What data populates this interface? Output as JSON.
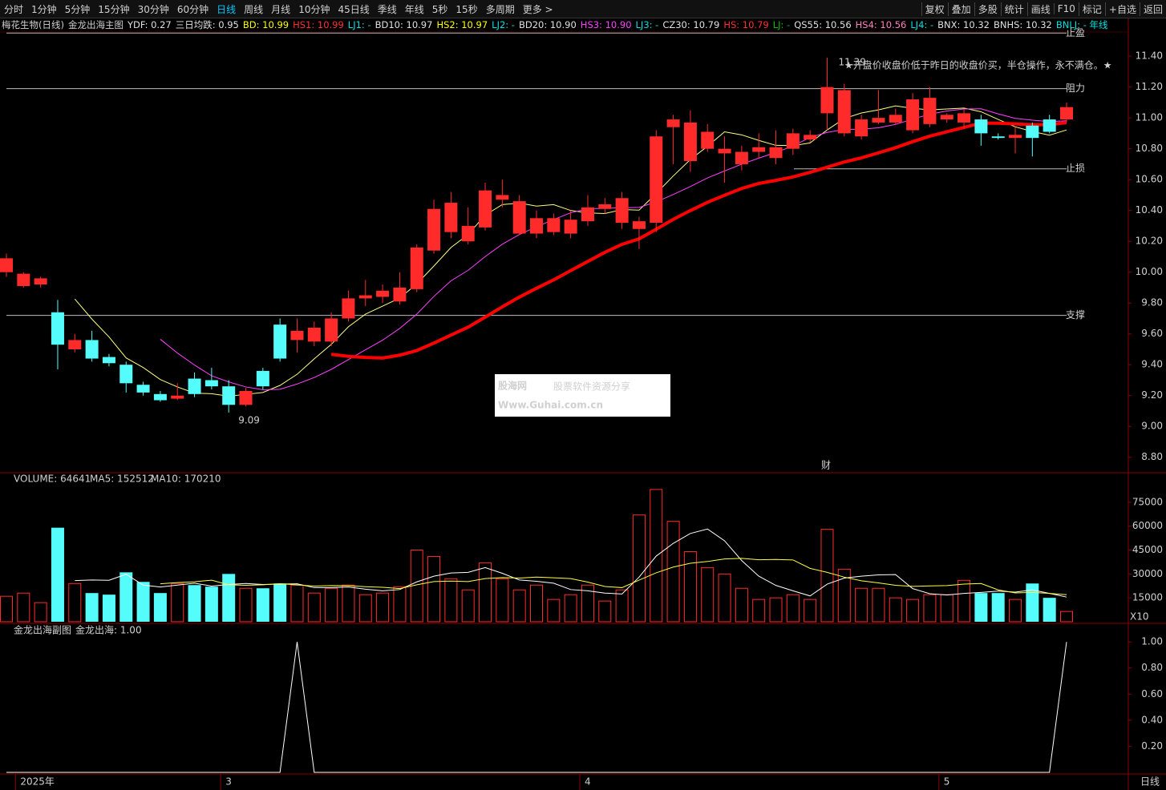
{
  "toolbar": {
    "left": [
      "分时",
      "1分钟",
      "5分钟",
      "15分钟",
      "30分钟",
      "60分钟",
      "日线",
      "周线",
      "月线",
      "10分钟",
      "45日线",
      "季线",
      "年线",
      "5秒",
      "15秒",
      "多周期",
      "更多 >"
    ],
    "active": "日线",
    "right": [
      "复权",
      "叠加",
      "多股",
      "统计",
      "画线",
      "F10",
      "标记",
      "+自选",
      "返回"
    ]
  },
  "header": {
    "stock": "梅花生物(日线)",
    "indicator": "金龙出海主图",
    "items": [
      {
        "text": "YDF: 0.27",
        "color": "#e0e0e0"
      },
      {
        "text": "三日均跌: 0.95",
        "color": "#e0e0e0"
      },
      {
        "text": "BD: 10.99",
        "color": "#ffff00"
      },
      {
        "text": "HS1: 10.99",
        "color": "#ff3030"
      },
      {
        "text": "LJ1: -",
        "color": "#00e0e0"
      },
      {
        "text": "BD10: 10.97",
        "color": "#e0e0e0"
      },
      {
        "text": "HS2: 10.97",
        "color": "#ffff00"
      },
      {
        "text": "LJ2: -",
        "color": "#00e0e0"
      },
      {
        "text": "BD20: 10.90",
        "color": "#e0e0e0"
      },
      {
        "text": "HS3: 10.90",
        "color": "#ff40ff"
      },
      {
        "text": "LJ3: -",
        "color": "#00e0e0"
      },
      {
        "text": "CZ30: 10.79",
        "color": "#e0e0e0"
      },
      {
        "text": "HS: 10.79",
        "color": "#ff3030"
      },
      {
        "text": "LJ: -",
        "color": "#00c000"
      },
      {
        "text": "QS55: 10.56",
        "color": "#e0e0e0"
      },
      {
        "text": "HS4: 10.56",
        "color": "#ff80c0"
      },
      {
        "text": "LJ4: -",
        "color": "#00e0e0"
      },
      {
        "text": "BNX: 10.32",
        "color": "#e0e0e0"
      },
      {
        "text": "BNHS: 10.32",
        "color": "#e0e0e0"
      },
      {
        "text": "BNLJ: - 年线",
        "color": "#00e0e0"
      }
    ]
  },
  "chart_data": [
    {
      "type": "candlestick",
      "up_color": "#ff2a2a",
      "down_color": "#54fcfc",
      "categories": [
        null,
        "2025年",
        null,
        null,
        null,
        null,
        null,
        null,
        null,
        null,
        null,
        null,
        null,
        "3",
        null,
        null,
        null,
        null,
        null,
        null,
        null,
        null,
        null,
        null,
        null,
        null,
        null,
        null,
        null,
        null,
        null,
        null,
        null,
        null,
        "4",
        null,
        null,
        null,
        null,
        null,
        null,
        null,
        null,
        null,
        null,
        null,
        null,
        null,
        null,
        null,
        null,
        null,
        null,
        null,
        null,
        "5",
        null,
        null,
        null,
        null,
        null,
        null,
        null
      ],
      "open": [
        10.0,
        9.91,
        9.92,
        9.74,
        9.5,
        9.56,
        9.45,
        9.4,
        9.27,
        9.21,
        9.18,
        9.31,
        9.3,
        9.26,
        9.14,
        9.36,
        9.66,
        9.56,
        9.55,
        9.55,
        9.7,
        9.83,
        9.84,
        9.81,
        9.89,
        10.14,
        10.26,
        10.2,
        10.29,
        10.47,
        10.25,
        10.25,
        10.26,
        10.25,
        10.33,
        10.41,
        10.32,
        10.28,
        10.32,
        10.94,
        10.72,
        10.8,
        10.77,
        10.7,
        10.78,
        10.74,
        10.8,
        10.86,
        11.03,
        10.9,
        10.88,
        10.97,
        10.97,
        10.92,
        10.96,
        10.99,
        10.97,
        10.99,
        10.88,
        10.87,
        10.95,
        10.99,
        10.99
      ],
      "high": [
        10.12,
        10.0,
        9.97,
        9.82,
        9.6,
        9.62,
        9.47,
        9.42,
        9.29,
        9.23,
        9.28,
        9.35,
        9.38,
        9.3,
        9.25,
        9.38,
        9.7,
        9.7,
        9.68,
        9.74,
        9.88,
        9.95,
        9.92,
        10.0,
        10.18,
        10.47,
        10.52,
        10.42,
        10.58,
        10.6,
        10.5,
        10.4,
        10.38,
        10.4,
        10.5,
        10.48,
        10.52,
        10.36,
        10.92,
        11.02,
        11.05,
        10.96,
        10.88,
        10.82,
        10.9,
        10.92,
        10.93,
        10.92,
        11.39,
        11.22,
        11.02,
        11.18,
        11.06,
        11.16,
        11.2,
        11.03,
        11.06,
        11.02,
        10.9,
        10.94,
        10.97,
        11.02,
        11.1
      ],
      "low": [
        9.97,
        9.9,
        9.9,
        9.37,
        9.48,
        9.42,
        9.39,
        9.22,
        9.2,
        9.16,
        9.17,
        9.19,
        9.24,
        9.09,
        9.13,
        9.24,
        9.42,
        9.48,
        9.52,
        9.52,
        9.68,
        9.78,
        9.8,
        9.79,
        9.87,
        10.12,
        10.22,
        10.18,
        10.27,
        10.42,
        10.24,
        10.22,
        10.24,
        10.22,
        10.3,
        10.38,
        10.28,
        10.15,
        10.26,
        10.7,
        10.65,
        10.78,
        10.58,
        10.66,
        10.74,
        10.7,
        10.76,
        10.84,
        10.92,
        10.88,
        10.86,
        10.96,
        10.96,
        10.9,
        10.94,
        10.97,
        10.93,
        10.82,
        10.86,
        10.77,
        10.75,
        10.9,
        10.97
      ],
      "close": [
        10.09,
        9.99,
        9.96,
        9.53,
        9.56,
        9.44,
        9.41,
        9.28,
        9.22,
        9.17,
        9.2,
        9.21,
        9.26,
        9.14,
        9.23,
        9.26,
        9.44,
        9.62,
        9.64,
        9.7,
        9.83,
        9.85,
        9.88,
        9.9,
        10.16,
        10.41,
        10.45,
        10.3,
        10.53,
        10.5,
        10.46,
        10.35,
        10.35,
        10.34,
        10.42,
        10.44,
        10.48,
        10.33,
        10.88,
        10.99,
        10.97,
        10.91,
        10.8,
        10.78,
        10.81,
        10.81,
        10.9,
        10.89,
        11.2,
        11.18,
        10.99,
        11.0,
        11.02,
        11.12,
        11.13,
        11.02,
        11.03,
        10.9,
        10.87,
        10.89,
        10.87,
        10.91,
        11.07
      ],
      "ylim": [
        8.7,
        11.65
      ],
      "yticks": [
        {
          "value": 8.8,
          "label": "8.80"
        },
        {
          "value": 9.0,
          "label": "9.00"
        },
        {
          "value": 9.2,
          "label": "9.20"
        },
        {
          "value": 9.4,
          "label": "9.40"
        },
        {
          "value": 9.6,
          "label": "9.60"
        },
        {
          "value": 9.8,
          "label": "9.80"
        },
        {
          "value": 10.0,
          "label": "10.00"
        },
        {
          "value": 10.2,
          "label": "10.20"
        },
        {
          "value": 10.4,
          "label": "10.40"
        },
        {
          "value": 10.6,
          "label": "10.60"
        },
        {
          "value": 10.8,
          "label": "10.80"
        },
        {
          "value": 11.0,
          "label": "11.00"
        },
        {
          "value": 11.2,
          "label": "11.20"
        },
        {
          "value": 11.4,
          "label": "11.40"
        }
      ],
      "levels": [
        {
          "label": "止盈",
          "value": 11.55
        },
        {
          "label": "阻力",
          "value": 11.19
        },
        {
          "label": "止损",
          "value": 10.67
        },
        {
          "label": "支撑",
          "value": 9.72
        }
      ],
      "high_label": 11.39,
      "low_label": 9.09,
      "annotation": "★开盘价收盘价低于昨日的收盘价买，半仓操作，永不满仓。★",
      "event_marker": "财",
      "watermark": {
        "brand": "股海网",
        "slogan": "股票软件资源分享",
        "url": "Www.Guhai.com.cn"
      }
    },
    {
      "type": "volume",
      "title": "VOLUME: 64641",
      "ma5_label": "MA5: 152512",
      "ma10_label": "MA10: 170210",
      "unit_label": "X10",
      "values": [
        16000,
        18000,
        12000,
        59000,
        24000,
        18000,
        17000,
        31000,
        25000,
        18000,
        24000,
        23000,
        22000,
        30000,
        21000,
        21000,
        24000,
        23000,
        18000,
        21000,
        23000,
        17000,
        18000,
        22000,
        45000,
        41000,
        27000,
        20000,
        37000,
        27000,
        20000,
        23000,
        14000,
        17000,
        23000,
        13000,
        20000,
        67000,
        83000,
        63000,
        44000,
        34000,
        30000,
        21000,
        14000,
        15000,
        17000,
        14000,
        58000,
        33000,
        21000,
        21000,
        15000,
        14000,
        17000,
        17000,
        26000,
        18000,
        18000,
        14000,
        24000,
        15000,
        6464
      ],
      "ylim": [
        0,
        92500
      ],
      "yticks": [
        15000,
        30000,
        45000,
        60000,
        75000
      ]
    },
    {
      "type": "line",
      "title": "金龙出海副图",
      "value_label": "金龙出海: 1.00",
      "color": "#ffffff",
      "values": [
        0,
        0,
        0,
        0,
        0,
        0,
        0,
        0,
        0,
        0,
        0,
        0,
        0,
        0,
        0,
        0,
        0,
        1,
        0,
        0,
        0,
        0,
        0,
        0,
        0,
        0,
        0,
        0,
        0,
        0,
        0,
        0,
        0,
        0,
        0,
        0,
        0,
        0,
        0,
        0,
        0,
        0,
        0,
        0,
        0,
        0,
        0,
        0,
        0,
        0,
        0,
        0,
        0,
        0,
        0,
        0,
        0,
        0,
        0,
        0,
        0,
        0,
        1
      ],
      "ylim": [
        0,
        1.13
      ],
      "yticks": [
        {
          "value": 0.2,
          "label": "0.20"
        },
        {
          "value": 0.4,
          "label": "0.40"
        },
        {
          "value": 0.6,
          "label": "0.60"
        },
        {
          "value": 0.8,
          "label": "0.80"
        },
        {
          "value": 1.0,
          "label": "1.00"
        }
      ]
    }
  ],
  "footer": {
    "period": "日线"
  }
}
